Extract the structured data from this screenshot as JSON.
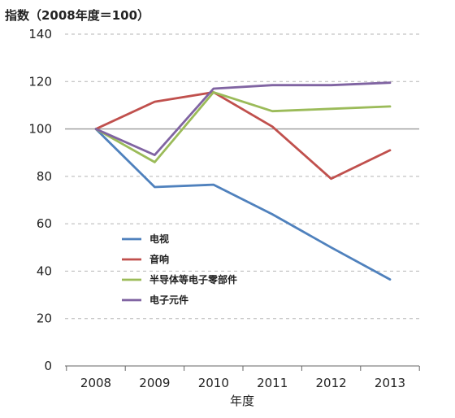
{
  "chart_data": {
    "type": "line",
    "ylabel": "指数（2008年度＝100）",
    "xlabel": "年度",
    "x": [
      "2008",
      "2009",
      "2010",
      "2011",
      "2012",
      "2013"
    ],
    "ylim": [
      0,
      140
    ],
    "yticks": [
      0,
      20,
      40,
      60,
      80,
      100,
      120,
      140
    ],
    "grid": true,
    "reference_line": 100,
    "legend_position": "center-left",
    "series": [
      {
        "name": "电视",
        "color": "#4f81bd",
        "values": [
          100,
          75.5,
          76.5,
          64,
          50,
          36.5
        ]
      },
      {
        "name": "音响",
        "color": "#c0504d",
        "values": [
          100,
          111.5,
          115.5,
          101,
          79,
          91
        ]
      },
      {
        "name": "半导体等电子零部件",
        "color": "#9bbb59",
        "values": [
          100,
          86,
          115.5,
          107.5,
          108.5,
          109.5
        ]
      },
      {
        "name": "电子元件",
        "color": "#8064a2",
        "values": [
          100,
          89,
          117,
          118.5,
          118.5,
          119.5
        ]
      }
    ]
  }
}
